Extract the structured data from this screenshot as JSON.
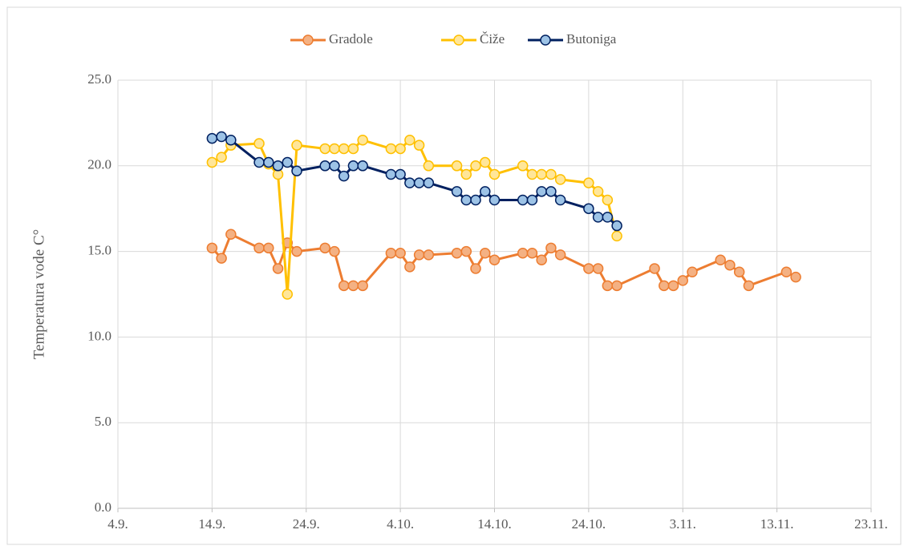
{
  "chart_data": {
    "type": "line",
    "y_label": "Temperatura vode C°",
    "xticks": [
      "4.9.",
      "14.9.",
      "24.9.",
      "4.10.",
      "14.10.",
      "24.10.",
      "3.11.",
      "13.11.",
      "23.11."
    ],
    "xlim": [
      "4.9.",
      "23.11."
    ],
    "ylim": [
      0,
      25
    ],
    "yticks": [
      {
        "value": 0,
        "label": "0.0"
      },
      {
        "value": 5,
        "label": "5.0"
      },
      {
        "value": 10,
        "label": "10.0"
      },
      {
        "value": 15,
        "label": "15.0"
      },
      {
        "value": 20,
        "label": "20.0"
      },
      {
        "value": 25,
        "label": "25.0"
      }
    ],
    "grid": true,
    "legend": "top",
    "series": [
      {
        "name": "Gradole",
        "color": "#ed7d31",
        "marker_fill": "#f4b183",
        "x": [
          "14.9.",
          "15.9.",
          "16.9.",
          "19.9.",
          "20.9.",
          "21.9.",
          "22.9.",
          "23.9.",
          "26.9.",
          "27.9.",
          "28.9.",
          "29.9.",
          "30.9.",
          "3.10.",
          "4.10.",
          "5.10.",
          "6.10.",
          "7.10.",
          "10.10.",
          "11.10.",
          "12.10.",
          "13.10.",
          "14.10.",
          "17.10.",
          "18.10.",
          "19.10.",
          "20.10.",
          "21.10.",
          "24.10.",
          "25.10.",
          "26.10.",
          "27.10.",
          "31.10.",
          "1.11.",
          "2.11.",
          "3.11.",
          "4.11.",
          "7.11.",
          "8.11.",
          "9.11.",
          "10.11.",
          "14.11.",
          "15.11."
        ],
        "values": [
          15.2,
          14.6,
          16.0,
          15.2,
          15.2,
          14.0,
          15.5,
          15.0,
          15.2,
          15.0,
          13.0,
          13.0,
          13.0,
          14.9,
          14.9,
          14.1,
          14.8,
          14.8,
          14.9,
          15.0,
          14.0,
          14.9,
          14.5,
          14.9,
          14.9,
          14.5,
          15.2,
          14.8,
          14.0,
          14.0,
          13.0,
          13.0,
          14.0,
          13.0,
          13.0,
          13.3,
          13.8,
          14.5,
          14.2,
          13.8,
          13.0,
          13.8,
          13.5
        ]
      },
      {
        "name": "Čiže",
        "color": "#ffc000",
        "marker_fill": "#ffe699",
        "x": [
          "14.9.",
          "15.9.",
          "16.9.",
          "19.9.",
          "20.9.",
          "21.9.",
          "22.9.",
          "23.9.",
          "26.9.",
          "27.9.",
          "28.9.",
          "29.9.",
          "30.9.",
          "3.10.",
          "4.10.",
          "5.10.",
          "6.10.",
          "7.10.",
          "10.10.",
          "11.10.",
          "12.10.",
          "13.10.",
          "14.10.",
          "17.10.",
          "18.10.",
          "19.10.",
          "20.10.",
          "21.10.",
          "24.10.",
          "25.10.",
          "26.10.",
          "27.10."
        ],
        "values": [
          20.2,
          20.5,
          21.2,
          21.3,
          20.1,
          19.5,
          12.5,
          21.2,
          21.0,
          21.0,
          21.0,
          21.0,
          21.5,
          21.0,
          21.0,
          21.5,
          21.2,
          20.0,
          20.0,
          19.5,
          20.0,
          20.2,
          19.5,
          20.0,
          19.5,
          19.5,
          19.5,
          19.2,
          19.0,
          18.5,
          18.0,
          15.9
        ]
      },
      {
        "name": "Butoniga",
        "color": "#002060",
        "marker_fill": "#9dc3e6",
        "x": [
          "14.9.",
          "15.9.",
          "16.9.",
          "19.9.",
          "20.9.",
          "21.9.",
          "22.9.",
          "23.9.",
          "26.9.",
          "27.9.",
          "28.9.",
          "29.9.",
          "30.9.",
          "3.10.",
          "4.10.",
          "5.10.",
          "6.10.",
          "7.10.",
          "10.10.",
          "11.10.",
          "12.10.",
          "13.10.",
          "14.10.",
          "17.10.",
          "18.10.",
          "19.10.",
          "20.10.",
          "21.10.",
          "24.10.",
          "25.10.",
          "26.10.",
          "27.10."
        ],
        "values": [
          21.6,
          21.7,
          21.5,
          20.2,
          20.2,
          20.0,
          20.2,
          19.7,
          20.0,
          20.0,
          19.4,
          20.0,
          20.0,
          19.5,
          19.5,
          19.0,
          19.0,
          19.0,
          18.5,
          18.0,
          18.0,
          18.5,
          18.0,
          18.0,
          18.0,
          18.5,
          18.5,
          18.0,
          17.5,
          17.0,
          17.0,
          16.5
        ]
      }
    ]
  }
}
